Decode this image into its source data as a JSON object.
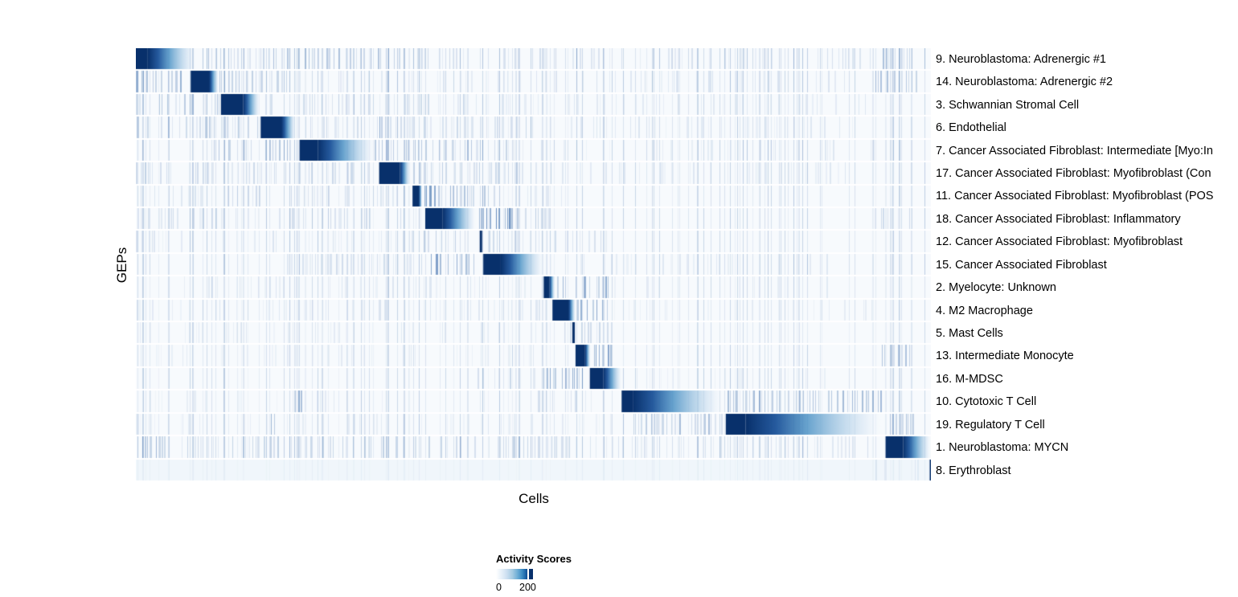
{
  "chart_data": {
    "type": "heatmap",
    "title": "",
    "xlabel": "Cells",
    "ylabel": "GEPs",
    "n_rows": 19,
    "legend_position": "bottom",
    "colorbar": {
      "title": "Activity Scores",
      "ticks": [
        0,
        200
      ],
      "tick_position_fraction": 0.857,
      "low_color": "#ffffff",
      "high_color": "#08306b"
    },
    "colors": {
      "block_dark": "#08306b",
      "stripe_blue": "rgba(8,69,148,",
      "row_background": "#f7fafd"
    },
    "rows": [
      {
        "label": "9. Neuroblastoma: Adrenergic #1",
        "base": 0.3,
        "block": {
          "start": 0.0,
          "solid_end": 0.015,
          "fade_end": 0.075
        },
        "stripes": [
          {
            "start": 0.08,
            "end": 0.35,
            "density": 0.5,
            "alpha": 0.3
          },
          {
            "start": 0.35,
            "end": 0.93,
            "density": 0.3,
            "alpha": 0.15
          },
          {
            "start": 0.935,
            "end": 0.985,
            "density": 0.65,
            "alpha": 0.3
          }
        ]
      },
      {
        "label": "14. Neuroblastoma: Adrenergic #2",
        "base": 0.25,
        "block": {
          "start": 0.069,
          "solid_end": 0.092,
          "fade_end": 0.104
        },
        "stripes": [
          {
            "start": 0.0,
            "end": 0.058,
            "density": 0.6,
            "alpha": 0.38
          },
          {
            "start": 0.105,
            "end": 0.2,
            "density": 0.45,
            "alpha": 0.25
          },
          {
            "start": 0.2,
            "end": 0.9,
            "density": 0.22,
            "alpha": 0.12
          },
          {
            "start": 0.93,
            "end": 0.985,
            "density": 0.55,
            "alpha": 0.28
          }
        ]
      },
      {
        "label": "3. Schwannian Stromal Cell",
        "base": 0.22,
        "block": {
          "start": 0.107,
          "solid_end": 0.135,
          "fade_end": 0.156
        },
        "stripes": [
          {
            "start": 0.0,
            "end": 0.105,
            "density": 0.45,
            "alpha": 0.25
          },
          {
            "start": 0.16,
            "end": 0.45,
            "density": 0.32,
            "alpha": 0.17
          },
          {
            "start": 0.45,
            "end": 0.93,
            "density": 0.18,
            "alpha": 0.1
          }
        ]
      },
      {
        "label": "6. Endothelial",
        "base": 0.22,
        "block": {
          "start": 0.157,
          "solid_end": 0.183,
          "fade_end": 0.201
        },
        "stripes": [
          {
            "start": 0.0,
            "end": 0.155,
            "density": 0.4,
            "alpha": 0.22
          },
          {
            "start": 0.205,
            "end": 0.5,
            "density": 0.32,
            "alpha": 0.17
          },
          {
            "start": 0.5,
            "end": 0.92,
            "density": 0.18,
            "alpha": 0.1
          },
          {
            "start": 0.306,
            "end": 0.31,
            "density": 1,
            "alpha": 0.45
          }
        ]
      },
      {
        "label": "7. Cancer Associated Fibroblast: Intermediate [Myo:In",
        "base": 0.28,
        "block": {
          "start": 0.206,
          "solid_end": 0.229,
          "fade_end": 0.3
        },
        "stripes": [
          {
            "start": 0.09,
            "end": 0.2,
            "density": 0.5,
            "alpha": 0.3
          },
          {
            "start": 0.3,
            "end": 0.47,
            "density": 0.45,
            "alpha": 0.27
          },
          {
            "start": 0.47,
            "end": 0.93,
            "density": 0.18,
            "alpha": 0.1
          }
        ]
      },
      {
        "label": "17. Cancer Associated Fibroblast: Myofibroblast (Con",
        "base": 0.22,
        "block": {
          "start": 0.306,
          "solid_end": 0.332,
          "fade_end": 0.345
        },
        "stripes": [
          {
            "start": 0.0,
            "end": 0.3,
            "density": 0.32,
            "alpha": 0.18
          },
          {
            "start": 0.35,
            "end": 0.55,
            "density": 0.4,
            "alpha": 0.22
          },
          {
            "start": 0.55,
            "end": 0.9,
            "density": 0.18,
            "alpha": 0.1
          }
        ]
      },
      {
        "label": "11. Cancer Associated Fibroblast: Myofibroblast (POS",
        "base": 0.22,
        "block": {
          "start": 0.348,
          "solid_end": 0.356,
          "fade_end": 0.36
        },
        "stripes": [
          {
            "start": 0.358,
            "end": 0.38,
            "density": 0.7,
            "alpha": 0.5
          },
          {
            "start": 0.38,
            "end": 0.44,
            "density": 0.5,
            "alpha": 0.33
          },
          {
            "start": 0.44,
            "end": 0.55,
            "density": 0.25,
            "alpha": 0.15
          },
          {
            "start": 0.0,
            "end": 0.34,
            "density": 0.28,
            "alpha": 0.15
          }
        ]
      },
      {
        "label": "18. Cancer Associated Fibroblast: Inflammatory",
        "base": 0.22,
        "block": {
          "start": 0.364,
          "solid_end": 0.386,
          "fade_end": 0.428
        },
        "stripes": [
          {
            "start": 0.43,
            "end": 0.47,
            "density": 0.7,
            "alpha": 0.55
          },
          {
            "start": 0.47,
            "end": 0.52,
            "density": 0.45,
            "alpha": 0.3
          },
          {
            "start": 0.0,
            "end": 0.36,
            "density": 0.28,
            "alpha": 0.15
          },
          {
            "start": 0.92,
            "end": 0.98,
            "density": 0.28,
            "alpha": 0.15
          }
        ]
      },
      {
        "label": "12. Cancer Associated Fibroblast: Myofibroblast",
        "base": 0.22,
        "block": {
          "start": 0.4325,
          "solid_end": 0.4355,
          "fade_end": 0.4355
        },
        "stripes": [
          {
            "start": 0.36,
            "end": 0.43,
            "density": 0.38,
            "alpha": 0.22
          },
          {
            "start": 0.44,
            "end": 0.6,
            "density": 0.32,
            "alpha": 0.17
          },
          {
            "start": 0.0,
            "end": 0.35,
            "density": 0.22,
            "alpha": 0.12
          }
        ]
      },
      {
        "label": "15. Cancer Associated Fibroblast",
        "base": 0.25,
        "block": {
          "start": 0.437,
          "solid_end": 0.459,
          "fade_end": 0.513
        },
        "stripes": [
          {
            "start": 0.365,
            "end": 0.435,
            "density": 0.6,
            "alpha": 0.45
          },
          {
            "start": 0.19,
            "end": 0.36,
            "density": 0.28,
            "alpha": 0.15
          },
          {
            "start": 0.52,
            "end": 0.9,
            "density": 0.18,
            "alpha": 0.1
          }
        ]
      },
      {
        "label": "2. Myelocyte: Unknown",
        "base": 0.2,
        "block": {
          "start": 0.513,
          "solid_end": 0.52,
          "fade_end": 0.527
        },
        "stripes": [
          {
            "start": 0.527,
            "end": 0.595,
            "density": 0.55,
            "alpha": 0.4
          },
          {
            "start": 0.06,
            "end": 0.5,
            "density": 0.18,
            "alpha": 0.11
          },
          {
            "start": 0.6,
            "end": 0.9,
            "density": 0.14,
            "alpha": 0.08
          }
        ]
      },
      {
        "label": "4. M2 Macrophage",
        "base": 0.2,
        "block": {
          "start": 0.524,
          "solid_end": 0.544,
          "fade_end": 0.553
        },
        "stripes": [
          {
            "start": 0.555,
            "end": 0.595,
            "density": 0.6,
            "alpha": 0.45
          },
          {
            "start": 0.0,
            "end": 0.52,
            "density": 0.18,
            "alpha": 0.11
          },
          {
            "start": 0.6,
            "end": 0.93,
            "density": 0.14,
            "alpha": 0.08
          }
        ]
      },
      {
        "label": "5. Mast Cells",
        "base": 0.18,
        "block": {
          "start": 0.549,
          "solid_end": 0.552,
          "fade_end": 0.552
        },
        "stripes": [
          {
            "start": 0.53,
            "end": 0.6,
            "density": 0.28,
            "alpha": 0.18
          },
          {
            "start": 0.0,
            "end": 0.52,
            "density": 0.14,
            "alpha": 0.09
          }
        ]
      },
      {
        "label": "13. Intermediate Monocyte",
        "base": 0.2,
        "block": {
          "start": 0.553,
          "solid_end": 0.565,
          "fade_end": 0.572
        },
        "stripes": [
          {
            "start": 0.572,
            "end": 0.6,
            "density": 0.6,
            "alpha": 0.45
          },
          {
            "start": 0.93,
            "end": 0.975,
            "density": 0.45,
            "alpha": 0.28
          },
          {
            "start": 0.0,
            "end": 0.5,
            "density": 0.14,
            "alpha": 0.09
          }
        ]
      },
      {
        "label": "16. M-MDSC",
        "base": 0.22,
        "block": {
          "start": 0.571,
          "solid_end": 0.588,
          "fade_end": 0.611
        },
        "stripes": [
          {
            "start": 0.512,
            "end": 0.57,
            "density": 0.5,
            "alpha": 0.38
          },
          {
            "start": 0.43,
            "end": 0.51,
            "density": 0.28,
            "alpha": 0.17
          },
          {
            "start": 0.62,
            "end": 0.93,
            "density": 0.14,
            "alpha": 0.08
          }
        ]
      },
      {
        "label": "10. Cytotoxic T Cell",
        "base": 0.22,
        "block": {
          "start": 0.611,
          "solid_end": 0.625,
          "fade_end": 0.739
        },
        "stripes": [
          {
            "start": 0.744,
            "end": 0.94,
            "density": 0.5,
            "alpha": 0.33
          },
          {
            "start": 0.5,
            "end": 0.6,
            "density": 0.22,
            "alpha": 0.14
          },
          {
            "start": 0.2,
            "end": 0.215,
            "density": 0.7,
            "alpha": 0.4
          },
          {
            "start": 0.0,
            "end": 0.45,
            "density": 0.14,
            "alpha": 0.08
          }
        ]
      },
      {
        "label": "19. Regulatory T Cell",
        "base": 0.22,
        "block": {
          "start": 0.742,
          "solid_end": 0.767,
          "fade_end": 0.939
        },
        "stripes": [
          {
            "start": 0.611,
            "end": 0.74,
            "density": 0.45,
            "alpha": 0.3
          },
          {
            "start": 0.948,
            "end": 0.979,
            "density": 0.5,
            "alpha": 0.3
          },
          {
            "start": 0.0,
            "end": 0.6,
            "density": 0.13,
            "alpha": 0.08
          },
          {
            "start": 0.17,
            "end": 0.175,
            "density": 1,
            "alpha": 0.45
          }
        ]
      },
      {
        "label": "1. Neuroblastoma: MYCN",
        "base": 0.28,
        "block": {
          "start": 0.943,
          "solid_end": 0.965,
          "fade_end": 1.0
        },
        "stripes": [
          {
            "start": 0.0,
            "end": 0.03,
            "density": 0.7,
            "alpha": 0.38
          },
          {
            "start": 0.03,
            "end": 0.55,
            "density": 0.38,
            "alpha": 0.2
          },
          {
            "start": 0.55,
            "end": 0.93,
            "density": 0.28,
            "alpha": 0.13
          }
        ]
      },
      {
        "label": "8. Erythroblast",
        "base": 0.05,
        "bg": "#f0f6fb",
        "block": {
          "start": 0.9985,
          "solid_end": 1.0,
          "fade_end": 1.0
        },
        "stripes": [
          {
            "start": 0.93,
            "end": 0.985,
            "density": 0.22,
            "alpha": 0.1
          }
        ]
      }
    ]
  }
}
